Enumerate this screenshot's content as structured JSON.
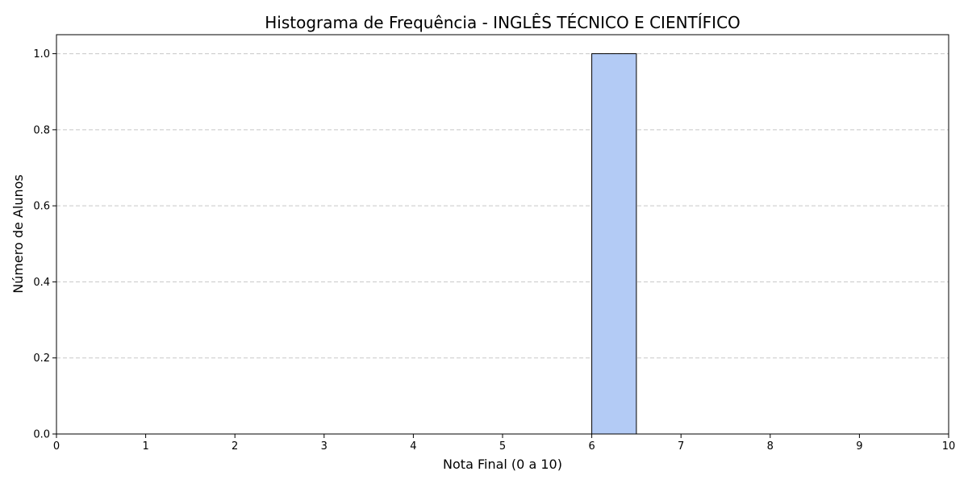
{
  "chart_data": {
    "type": "bar",
    "title": "Histograma de Frequência - INGLÊS TÉCNICO E CIENTÍFICO",
    "xlabel": "Nota Final (0 a 10)",
    "ylabel": "Número de Alunos",
    "xlim": [
      0,
      10
    ],
    "ylim": [
      0,
      1.05
    ],
    "x_ticks": [
      "0",
      "1",
      "2",
      "3",
      "4",
      "5",
      "6",
      "7",
      "8",
      "9",
      "10"
    ],
    "y_ticks": [
      "0.0",
      "0.2",
      "0.4",
      "0.6",
      "0.8",
      "1.0"
    ],
    "bins": [
      {
        "start": 6.0,
        "end": 6.5,
        "count": 1
      }
    ],
    "bar_color": "#b3cbf5",
    "bar_edge_color": "#000000",
    "grid": "y-dashed"
  }
}
